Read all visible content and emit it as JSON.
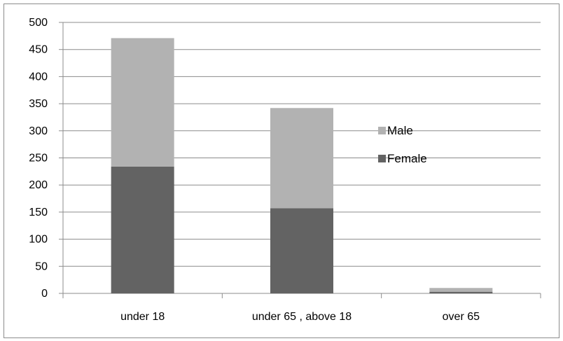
{
  "chart_data": {
    "type": "bar",
    "stacked": true,
    "categories": [
      "under 18",
      "under 65 , above 18",
      "over 65"
    ],
    "series": [
      {
        "name": "Female",
        "values": [
          234,
          157,
          3
        ],
        "color": "#636363"
      },
      {
        "name": "Male",
        "values": [
          237,
          185,
          7
        ],
        "color": "#b2b2b2"
      }
    ],
    "title": "",
    "xlabel": "",
    "ylabel": "",
    "ylim": [
      0,
      500
    ],
    "yticks": [
      0,
      50,
      100,
      150,
      200,
      250,
      300,
      350,
      400,
      450,
      500
    ],
    "grid": true,
    "legend_position": "right",
    "legend_order": [
      "Male",
      "Female"
    ],
    "gridline_color": "#8c8c8c"
  }
}
